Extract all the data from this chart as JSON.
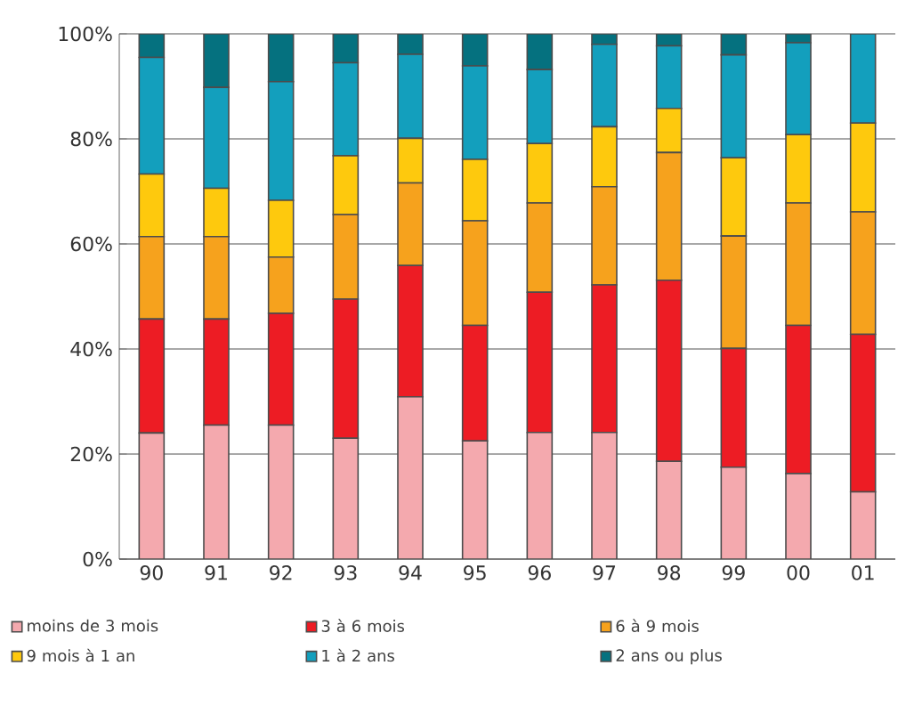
{
  "chart_data": {
    "type": "bar",
    "stacked": true,
    "categories": [
      "90",
      "91",
      "92",
      "93",
      "94",
      "95",
      "96",
      "97",
      "98",
      "99",
      "00",
      "01"
    ],
    "series": [
      {
        "name": "moins de 3 mois",
        "color": "#f4a9ae",
        "values": [
          24,
          25.5,
          25.5,
          23,
          30.9,
          22.5,
          24.1,
          24.1,
          18.6,
          17.5,
          16.3,
          12.8
        ]
      },
      {
        "name": "3 à 6 mois",
        "color": "#ed1c24",
        "values": [
          21.7,
          20.2,
          21.3,
          26.5,
          25,
          22,
          26.7,
          28.1,
          34.5,
          22.6,
          28.2,
          30
        ]
      },
      {
        "name": "6 à 9 mois",
        "color": "#f6a21d",
        "values": [
          15.7,
          15.7,
          10.7,
          16.1,
          15.7,
          19.9,
          17,
          18.7,
          24.3,
          21.4,
          23.3,
          23.3
        ]
      },
      {
        "name": "9 mois à 1 an",
        "color": "#fec90d",
        "values": [
          11.9,
          9.2,
          10.8,
          11.2,
          8.5,
          11.7,
          11.3,
          11.4,
          8.4,
          14.9,
          13,
          16.9
        ]
      },
      {
        "name": "1 à 2 ans",
        "color": "#139fbd",
        "values": [
          22.2,
          19.2,
          22.6,
          17.7,
          16,
          17.8,
          14.1,
          15.7,
          11.9,
          19.6,
          17.5,
          17
        ]
      },
      {
        "name": "2 ans ou plus",
        "color": "#05717f",
        "values": [
          4.5,
          10.2,
          9.1,
          5.5,
          3.9,
          6.1,
          6.8,
          2,
          2.3,
          4,
          1.7,
          0
        ]
      }
    ],
    "ylim": [
      0,
      100
    ],
    "yticks": [
      {
        "value": 0,
        "label": "0%"
      },
      {
        "value": 20,
        "label": "20%"
      },
      {
        "value": 40,
        "label": "40%"
      },
      {
        "value": 60,
        "label": "60%"
      },
      {
        "value": 80,
        "label": "80%"
      },
      {
        "value": 100,
        "label": "100%"
      }
    ],
    "grid": "y",
    "legend": "bottom"
  }
}
